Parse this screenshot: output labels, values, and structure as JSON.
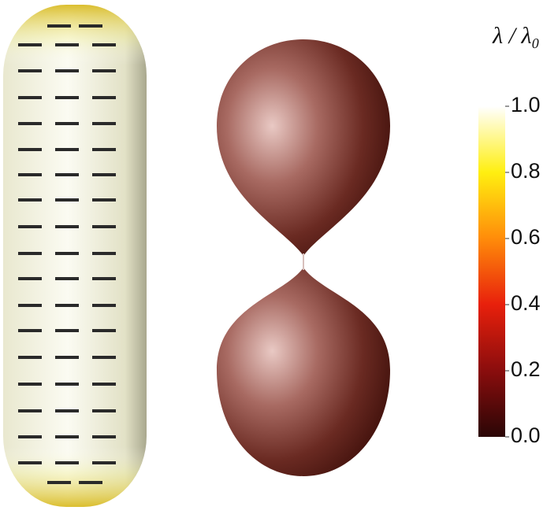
{
  "colorbar": {
    "title": "λ / λ₀",
    "lim": [
      0,
      1
    ],
    "ticks": [
      {
        "value": 0,
        "label": "0.0"
      },
      0.2,
      0.4,
      0.6,
      0.8,
      {
        "value": 1,
        "label": "1.0"
      }
    ]
  }
}
